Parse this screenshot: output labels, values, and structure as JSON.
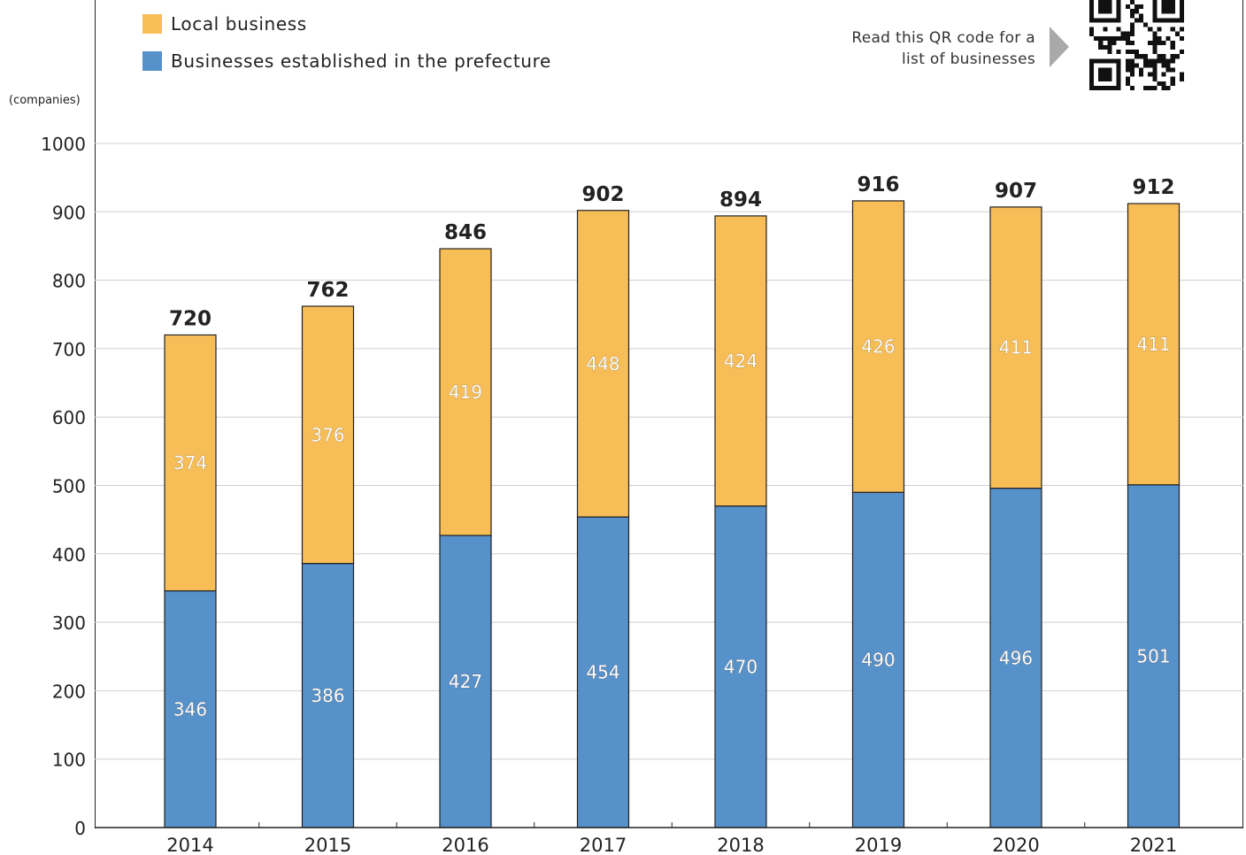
{
  "legend": {
    "items": [
      {
        "label": "Local business",
        "color": "#F7BE58"
      },
      {
        "label": "Businesses established in the prefecture",
        "color": "#5791C9"
      }
    ]
  },
  "qr": {
    "note_line1": "Read this QR code for a",
    "note_line2": "list of businesses",
    "icon": "qr-code-icon"
  },
  "chart_data": {
    "type": "bar",
    "stacked": true,
    "categories": [
      "2014",
      "2015",
      "2016",
      "2017",
      "2018",
      "2019",
      "2020",
      "2021"
    ],
    "series": [
      {
        "name": "Businesses established in the prefecture",
        "color": "#5791C9",
        "values": [
          346,
          386,
          427,
          454,
          470,
          490,
          496,
          501
        ]
      },
      {
        "name": "Local business",
        "color": "#F7BE58",
        "values": [
          374,
          376,
          419,
          448,
          424,
          426,
          411,
          411
        ]
      }
    ],
    "totals": [
      720,
      762,
      846,
      902,
      894,
      916,
      907,
      912
    ],
    "yunit": "(companies)",
    "ylim": [
      0,
      1000
    ],
    "yticks": [
      0,
      100,
      200,
      300,
      400,
      500,
      600,
      700,
      800,
      900,
      1000
    ],
    "grid": true,
    "legend_position": "top-left"
  }
}
